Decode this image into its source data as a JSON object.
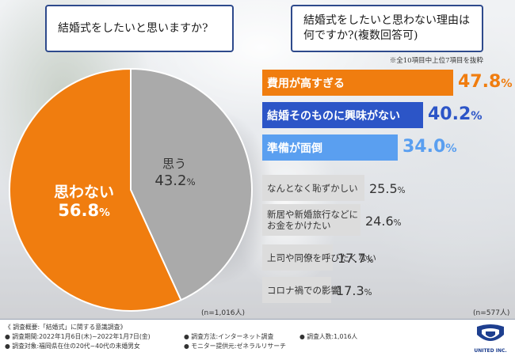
{
  "colors": {
    "orange": "#f07d0f",
    "gray": "#aaaaaa",
    "blue_dark": "#2c55c7",
    "blue_light": "#5a9ff0",
    "bar_gray": "#dcdcdc",
    "frame": "#2e4a8c"
  },
  "questions": {
    "left": "結婚式をしたいと思いますか?",
    "right_line1": "結婚式をしたいと思わない理由は",
    "right_line2": "何ですか?(複数回答可)"
  },
  "right_note": "※全10項目中上位7項目を抜粋",
  "chart_data": [
    {
      "type": "pie",
      "title": "結婚式をしたいと思いますか?",
      "slices": [
        {
          "label": "思わない",
          "value": 56.8,
          "display": "56.8%",
          "color": "#f07d0f"
        },
        {
          "label": "思う",
          "value": 43.2,
          "display": "43.2%",
          "color": "#aaaaaa"
        }
      ],
      "sample": "(n=1,016人)"
    },
    {
      "type": "bar",
      "orientation": "horizontal",
      "title": "結婚式をしたいと思わない理由は何ですか?(複数回答可)",
      "xlim": [
        0,
        50
      ],
      "sample": "(n=577人)",
      "bars": [
        {
          "label": "費用が高すぎる",
          "value": 47.8,
          "display": "47.8%",
          "style": "orange"
        },
        {
          "label": "結婚そのものに興味がない",
          "value": 40.2,
          "display": "40.2%",
          "style": "blue_dark"
        },
        {
          "label": "準備が面倒",
          "value": 34.0,
          "display": "34.0%",
          "style": "blue_light"
        },
        {
          "label": "なんとなく恥ずかしい",
          "value": 25.5,
          "display": "25.5%",
          "style": "gray"
        },
        {
          "label": "新居や新婚旅行などに",
          "label2": "お金をかけたい",
          "value": 24.6,
          "display": "24.6%",
          "style": "gray"
        },
        {
          "label": "上司や同僚を呼びたくない",
          "value": 17.7,
          "display": "17.7%",
          "style": "gray"
        },
        {
          "label": "コロナ禍での影響",
          "value": 17.3,
          "display": "17.3%",
          "style": "gray"
        }
      ]
    }
  ],
  "footer": {
    "title": "《 調査概要:「結婚式」に関する意識調査》",
    "period": "● 調査期間:2022年1月6日(木)~2022年1月7日(金)",
    "method": "● 調査方法:インターネット調査",
    "count": "● 調査人数:1,016人",
    "target": "● 調査対象:福岡県在住の20代~40代の未婚男女",
    "panel": "● モニター提供元:ゼネラルリサーチ",
    "logo_text": "UNITED INC."
  }
}
